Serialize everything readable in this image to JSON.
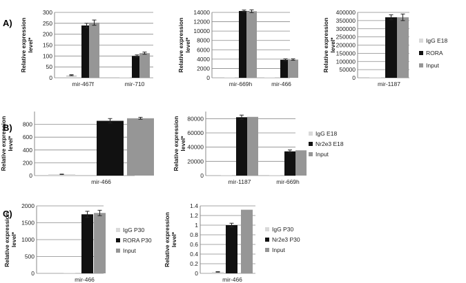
{
  "colors": {
    "control": "#d9d9d9",
    "target": "#111111",
    "input": "#969696",
    "grid": "#888888",
    "axis": "#888888",
    "error": "#222222"
  },
  "panels": [
    {
      "id": "A",
      "label": "A)"
    },
    {
      "id": "B",
      "label": "B)"
    },
    {
      "id": "C",
      "label": "C)"
    }
  ],
  "legends": [
    {
      "entries": [
        "IgG  E18",
        "RORA",
        "Input"
      ]
    },
    {
      "entries": [
        "IgG  E18",
        "Nr2e3 E18",
        "Input"
      ]
    },
    {
      "entries": [
        "IgG P30",
        "RORA P30",
        "Input"
      ]
    },
    {
      "entries": [
        "IgG P30",
        "Nr2e3 P30",
        "Input"
      ]
    }
  ],
  "chart_data": [
    {
      "type": "bar",
      "panel": "A",
      "ylabel": "Relative expression level*",
      "ylim": [
        0,
        300
      ],
      "yticks": [
        0,
        50,
        100,
        150,
        200,
        250,
        300
      ],
      "categories": [
        "mir-467f",
        "mir-710"
      ],
      "series": [
        {
          "name": "IgG  E18",
          "values": [
            12,
            2
          ],
          "errors": [
            2,
            0
          ]
        },
        {
          "name": "RORA",
          "values": [
            240,
            100
          ],
          "errors": [
            10,
            5
          ]
        },
        {
          "name": "Input",
          "values": [
            253,
            113
          ],
          "errors": [
            12,
            5
          ]
        }
      ]
    },
    {
      "type": "bar",
      "panel": "A",
      "ylabel": "Relative expression level*",
      "ylim": [
        0,
        14000
      ],
      "yticks": [
        0,
        2000,
        4000,
        6000,
        8000,
        10000,
        12000,
        14000
      ],
      "categories": [
        "mir-669h",
        "mir-466"
      ],
      "series": [
        {
          "name": "IgG  E18",
          "values": [
            80,
            60
          ],
          "errors": [
            0,
            0
          ]
        },
        {
          "name": "RORA",
          "values": [
            14300,
            3850
          ],
          "errors": [
            200,
            200
          ]
        },
        {
          "name": "Input",
          "values": [
            14250,
            3900
          ],
          "errors": [
            300,
            150
          ]
        }
      ]
    },
    {
      "type": "bar",
      "panel": "A",
      "ylabel": "Relative expression level*",
      "ylim": [
        0,
        400000
      ],
      "yticks": [
        0,
        50000,
        100000,
        150000,
        200000,
        250000,
        300000,
        350000,
        400000
      ],
      "categories": [
        "mir-1187"
      ],
      "series": [
        {
          "name": "IgG  E18",
          "values": [
            800
          ],
          "errors": [
            0
          ]
        },
        {
          "name": "RORA",
          "values": [
            370000
          ],
          "errors": [
            15000
          ]
        },
        {
          "name": "Input",
          "values": [
            370000
          ],
          "errors": [
            20000
          ]
        }
      ]
    },
    {
      "type": "bar",
      "panel": "B",
      "ylabel": "Relative expression level*",
      "ylim": [
        0,
        1000
      ],
      "yticks": [
        0,
        200,
        400,
        600,
        800
      ],
      "categories": [
        "mir-466"
      ],
      "series": [
        {
          "name": "IgG  E18",
          "values": [
            20
          ],
          "errors": [
            3
          ]
        },
        {
          "name": "Nr2e3 E18",
          "values": [
            855
          ],
          "errors": [
            35
          ]
        },
        {
          "name": "Input",
          "values": [
            895
          ],
          "errors": [
            15
          ]
        }
      ]
    },
    {
      "type": "bar",
      "panel": "B",
      "ylabel": "Relative expression level*",
      "ylim": [
        0,
        90000
      ],
      "yticks": [
        0,
        20000,
        40000,
        60000,
        80000
      ],
      "categories": [
        "mir-1187",
        "mir-669h"
      ],
      "series": [
        {
          "name": "IgG  E18",
          "values": [
            300,
            200
          ],
          "errors": [
            0,
            0
          ]
        },
        {
          "name": "Nr2e3 E18",
          "values": [
            82000,
            34000
          ],
          "errors": [
            3000,
            2000
          ]
        },
        {
          "name": "Input",
          "values": [
            82500,
            35500
          ],
          "errors": [
            0,
            0
          ]
        }
      ]
    },
    {
      "type": "bar",
      "panel": "C",
      "ylabel": "Relative expression level*",
      "ylim": [
        0,
        2000
      ],
      "yticks": [
        0,
        500,
        1000,
        1500,
        2000
      ],
      "categories": [
        "mir-466"
      ],
      "series": [
        {
          "name": "IgG P30",
          "values": [
            5
          ],
          "errors": [
            0
          ]
        },
        {
          "name": "RORA P30",
          "values": [
            1750
          ],
          "errors": [
            90
          ]
        },
        {
          "name": "Input",
          "values": [
            1790
          ],
          "errors": [
            80
          ]
        }
      ]
    },
    {
      "type": "bar",
      "panel": "C",
      "ylabel": "Relative expression level*",
      "ylim": [
        0,
        1.4
      ],
      "yticks": [
        0,
        0.2,
        0.4,
        0.6,
        0.8,
        1,
        1.2,
        1.4
      ],
      "categories": [
        "mir-466"
      ],
      "series": [
        {
          "name": "IgG P30",
          "values": [
            0.03
          ],
          "errors": [
            0.005
          ]
        },
        {
          "name": "Nr2e3 P30",
          "values": [
            1.0
          ],
          "errors": [
            0.04
          ]
        },
        {
          "name": "Input",
          "values": [
            1.32
          ],
          "errors": [
            0
          ]
        }
      ]
    }
  ]
}
